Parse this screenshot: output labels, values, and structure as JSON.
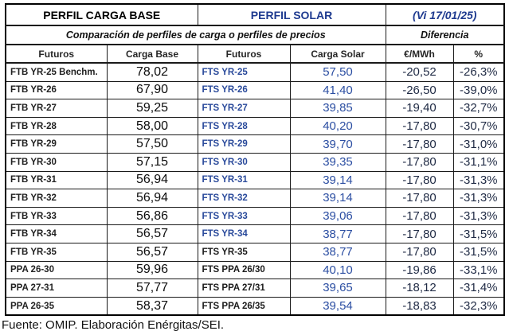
{
  "header": {
    "base_title": "PERFIL CARGA BASE",
    "solar_title": "PERFIL SOLAR",
    "date_label": "(Vi 17/01/25)",
    "subtitle": "Comparación de perfiles de carga o perfiles de precios",
    "diff_label": "Diferencia"
  },
  "columns": [
    {
      "key": "futuros_base",
      "label": "Futuros"
    },
    {
      "key": "carga_base",
      "label": "Carga Base"
    },
    {
      "key": "futuros_solar",
      "label": "Futuros"
    },
    {
      "key": "carga_solar",
      "label": "Carga Solar"
    },
    {
      "key": "diff_eur",
      "label": "€/MWh"
    },
    {
      "key": "diff_pct",
      "label": "%"
    }
  ],
  "rows": [
    {
      "futuros_base": "FTB YR-25 Benchm.",
      "carga_base": "78,02",
      "futuros_solar": "FTS YR-25",
      "carga_solar": "57,50",
      "diff_eur": "-20,52",
      "diff_pct": "-26,3%",
      "solar_black": false
    },
    {
      "futuros_base": "FTB YR-26",
      "carga_base": "67,90",
      "futuros_solar": "FTS YR-26",
      "carga_solar": "41,40",
      "diff_eur": "-26,50",
      "diff_pct": "-39,0%",
      "solar_black": false
    },
    {
      "futuros_base": "FTB YR-27",
      "carga_base": "59,25",
      "futuros_solar": "FTS YR-27",
      "carga_solar": "39,85",
      "diff_eur": "-19,40",
      "diff_pct": "-32,7%",
      "solar_black": false
    },
    {
      "futuros_base": "FTB YR-28",
      "carga_base": "58,00",
      "futuros_solar": "FTS YR-28",
      "carga_solar": "40,20",
      "diff_eur": "-17,80",
      "diff_pct": "-30,7%",
      "solar_black": false
    },
    {
      "futuros_base": "FTB YR-29",
      "carga_base": "57,50",
      "futuros_solar": "FTS YR-29",
      "carga_solar": "39,70",
      "diff_eur": "-17,80",
      "diff_pct": "-31,0%",
      "solar_black": false
    },
    {
      "futuros_base": "FTB YR-30",
      "carga_base": "57,15",
      "futuros_solar": "FTS YR-30",
      "carga_solar": "39,35",
      "diff_eur": "-17,80",
      "diff_pct": "-31,1%",
      "solar_black": false
    },
    {
      "futuros_base": "FTB YR-31",
      "carga_base": "56,94",
      "futuros_solar": "FTS YR-31",
      "carga_solar": "39,14",
      "diff_eur": "-17,80",
      "diff_pct": "-31,3%",
      "solar_black": false
    },
    {
      "futuros_base": "FTB YR-32",
      "carga_base": "56,94",
      "futuros_solar": "FTS YR-32",
      "carga_solar": "39,14",
      "diff_eur": "-17,80",
      "diff_pct": "-31,3%",
      "solar_black": false
    },
    {
      "futuros_base": "FTB YR-33",
      "carga_base": "56,86",
      "futuros_solar": "FTS YR-33",
      "carga_solar": "39,06",
      "diff_eur": "-17,80",
      "diff_pct": "-31,3%",
      "solar_black": false
    },
    {
      "futuros_base": "FTB YR-34",
      "carga_base": "56,57",
      "futuros_solar": "FTS YR-34",
      "carga_solar": "38,77",
      "diff_eur": "-17,80",
      "diff_pct": "-31,5%",
      "solar_black": false
    },
    {
      "futuros_base": "FTB YR-35",
      "carga_base": "56,57",
      "futuros_solar": "FTS YR-35",
      "carga_solar": "38,77",
      "diff_eur": "-17,80",
      "diff_pct": "-31,5%",
      "solar_black": true
    },
    {
      "futuros_base": "PPA 26-30",
      "carga_base": "59,96",
      "futuros_solar": "FTS PPA 26/30",
      "carga_solar": "40,10",
      "diff_eur": "-19,86",
      "diff_pct": "-33,1%",
      "solar_black": true
    },
    {
      "futuros_base": "PPA 27-31",
      "carga_base": "57,77",
      "futuros_solar": "FTS PPA 27/31",
      "carga_solar": "39,65",
      "diff_eur": "-18,12",
      "diff_pct": "-31,4%",
      "solar_black": true
    },
    {
      "futuros_base": "PPA 26-35",
      "carga_base": "58,37",
      "futuros_solar": "FTS PPA 26/35",
      "carga_solar": "39,54",
      "diff_eur": "-18,83",
      "diff_pct": "-32,3%",
      "solar_black": true
    }
  ],
  "footer": {
    "source": "Fuente: OMIP. Elaboración Enérgitas/SEI."
  },
  "colors": {
    "header_solar_blue": "#1e3a8f",
    "label_blue": "#2a4a9b",
    "value_blue": "#2b4ea2",
    "diff_dark": "#1f2a44",
    "text_dark": "#1a1a1a",
    "border": "#000000",
    "background": "#ffffff"
  }
}
